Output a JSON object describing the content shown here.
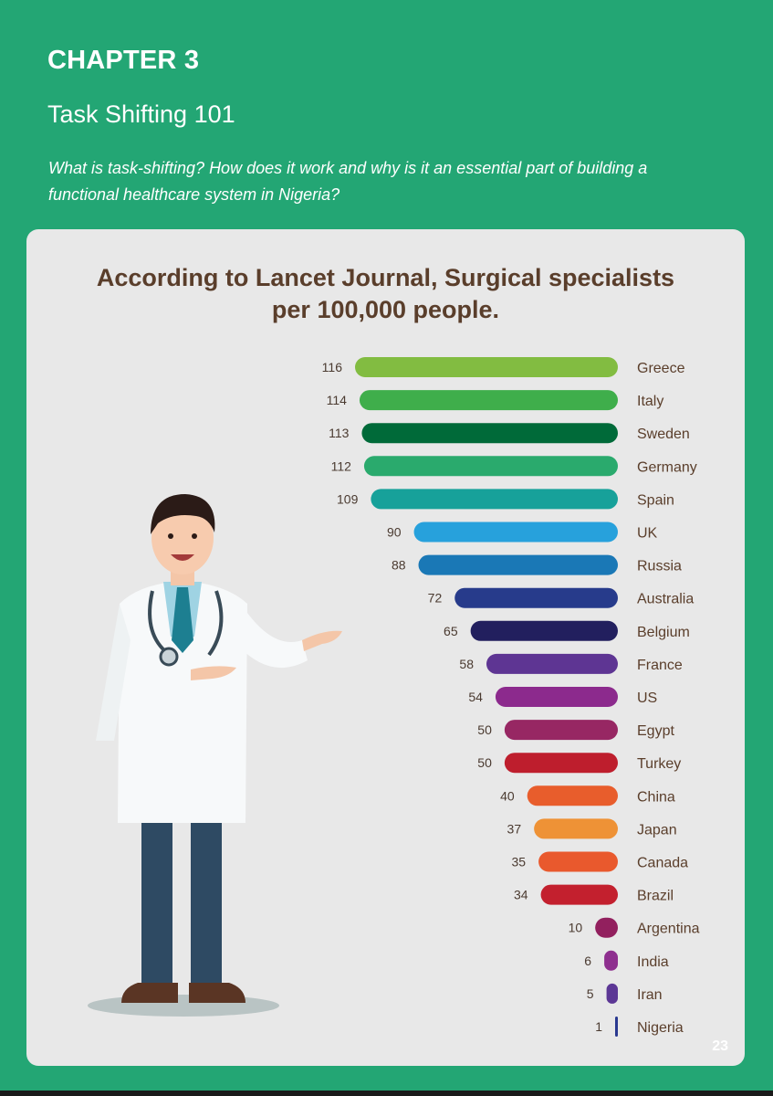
{
  "header": {
    "chapter": "CHAPTER 3",
    "subtitle": "Task Shifting 101",
    "question": "What is task-shifting? How does it work and why is it an essential part of building a functional healthcare system in Nigeria?"
  },
  "page_number": "23",
  "chart_data": {
    "type": "bar",
    "orientation": "horizontal",
    "title_lines": [
      "According to Lancet Journal, Surgical specialists",
      "per 100,000 people."
    ],
    "xlabel": "",
    "ylabel": "",
    "xlim": [
      0,
      116
    ],
    "grid": false,
    "legend": "none",
    "categories": [
      "Greece",
      "Italy",
      "Sweden",
      "Germany",
      "Spain",
      "UK",
      "Russia",
      "Australia",
      "Belgium",
      "France",
      "US",
      "Egypt",
      "Turkey",
      "China",
      "Japan",
      "Canada",
      "Brazil",
      "Argentina",
      "India",
      "Iran",
      "Nigeria"
    ],
    "values": [
      116,
      114,
      113,
      112,
      109,
      90,
      88,
      72,
      65,
      58,
      54,
      50,
      50,
      40,
      37,
      35,
      34,
      10,
      6,
      5,
      1
    ],
    "colors": [
      "#82bc41",
      "#3fae4b",
      "#006a39",
      "#2aaa6d",
      "#17a19a",
      "#27a1dc",
      "#1a78b6",
      "#273b8b",
      "#221f5e",
      "#5e3593",
      "#8c2a8d",
      "#972763",
      "#be1e2d",
      "#e85d2c",
      "#ee9236",
      "#e9592d",
      "#c3202e",
      "#92205e",
      "#8e2f8f",
      "#5c3795",
      "#2a3990"
    ]
  }
}
